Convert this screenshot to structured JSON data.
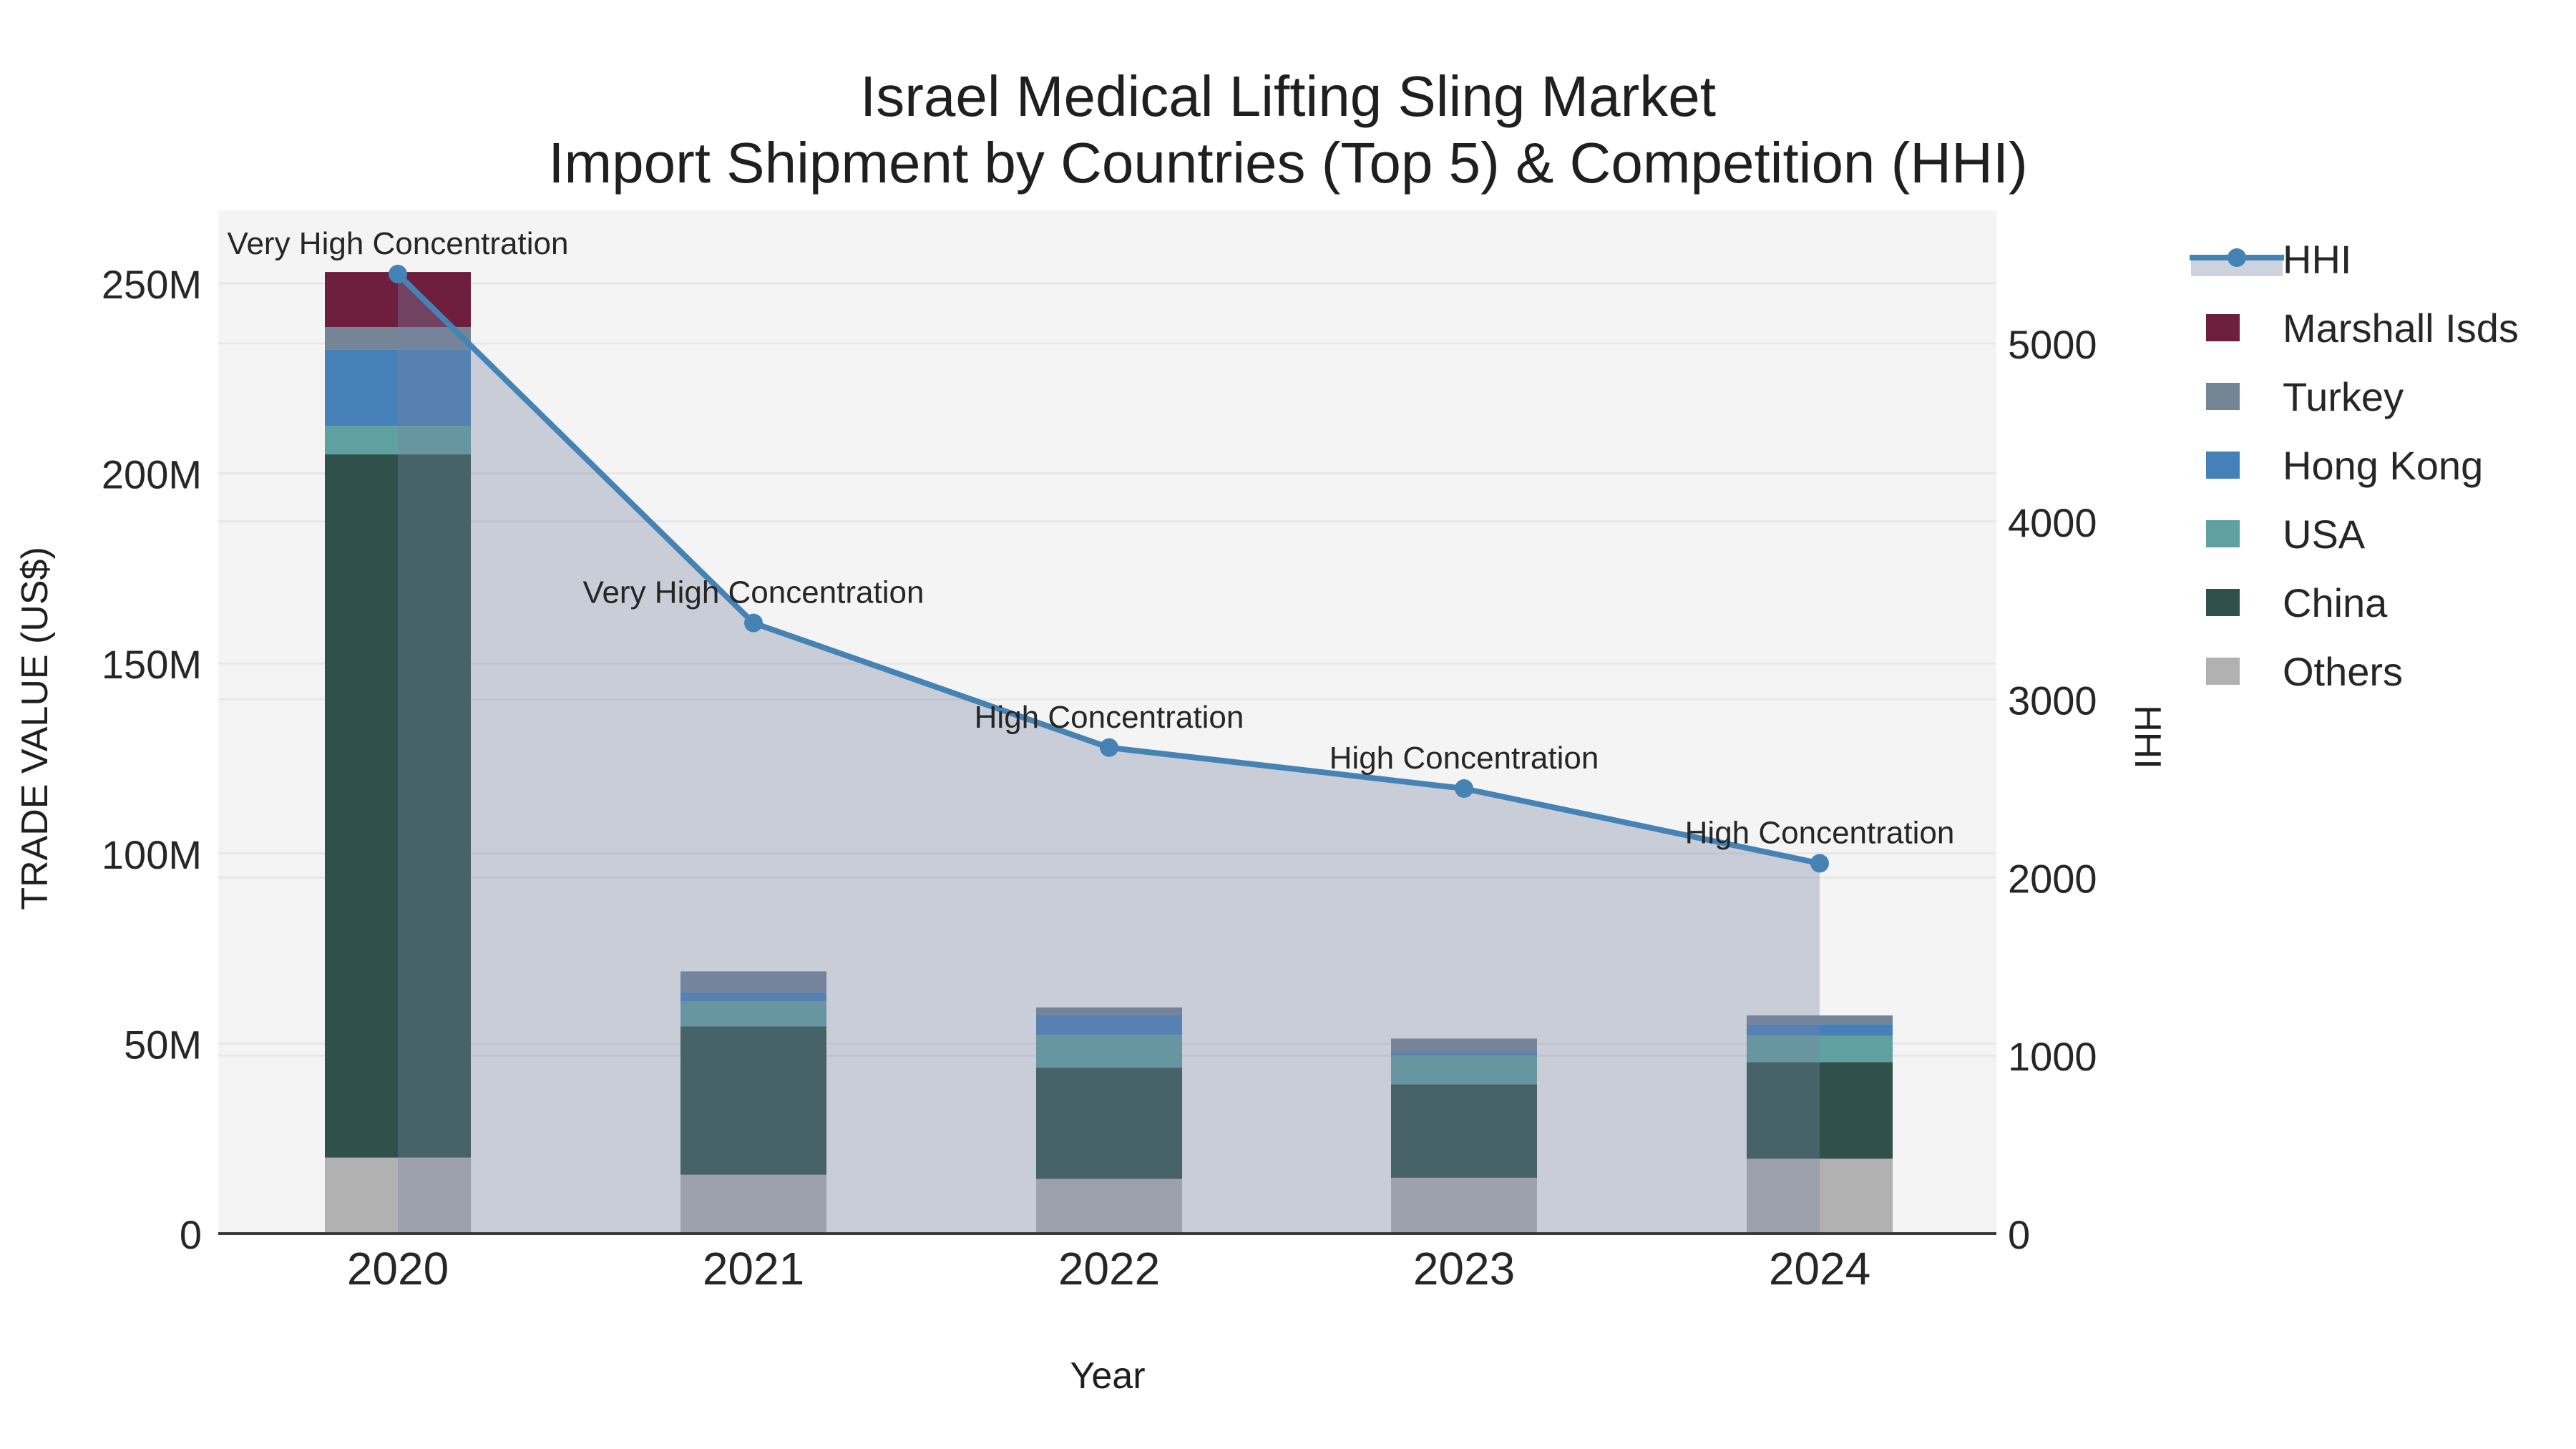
{
  "chart": {
    "title_line1": "Israel Medical Lifting Sling Market",
    "title_line2": "Import Shipment by Countries (Top 5) & Competition (HHI)",
    "x_axis_title": "Year",
    "y_left_title": "TRADE VALUE (US$)",
    "y_right_title": "HHI"
  },
  "chart_data": {
    "type": "combo: stacked-bar (left axis) + line-with-area (right axis)",
    "categories": [
      "2020",
      "2021",
      "2022",
      "2023",
      "2024"
    ],
    "bar_value_unit": "US$ millions",
    "stack_order_bottom_to_top": [
      "Others",
      "China",
      "USA",
      "Hong Kong",
      "Turkey",
      "Marshall Isds"
    ],
    "series": [
      {
        "name": "Marshall Isds",
        "color": "#6e1f3e",
        "values": [
          14.5,
          0,
          0,
          0,
          0
        ]
      },
      {
        "name": "Turkey",
        "color": "#748595",
        "values": [
          6.0,
          5.5,
          2.0,
          3.6,
          2.3
        ]
      },
      {
        "name": "Hong Kong",
        "color": "#4580b8",
        "values": [
          20.0,
          2.4,
          5.2,
          0.8,
          3.1
        ]
      },
      {
        "name": "USA",
        "color": "#5fa0a0",
        "values": [
          7.5,
          6.6,
          8.6,
          7.6,
          6.9
        ]
      },
      {
        "name": "China",
        "color": "#2f504b",
        "values": [
          185.0,
          39.0,
          29.3,
          24.6,
          25.4
        ]
      },
      {
        "name": "Others",
        "color": "#b1b1b1",
        "values": [
          20.0,
          15.5,
          14.4,
          14.7,
          19.7
        ]
      }
    ],
    "line_series": {
      "name": "HHI",
      "axis": "right",
      "color": "#4583b5",
      "area_color": "rgba(119,131,163,0.35)",
      "values": [
        5390,
        3430,
        2730,
        2500,
        2080
      ]
    },
    "annotations": [
      {
        "category": "2020",
        "text": "Very High Concentration"
      },
      {
        "category": "2021",
        "text": "Very High Concentration"
      },
      {
        "category": "2022",
        "text": "High Concentration"
      },
      {
        "category": "2023",
        "text": "High Concentration"
      },
      {
        "category": "2024",
        "text": "High Concentration"
      }
    ],
    "left_axis": {
      "label": "TRADE VALUE (US$)",
      "tick_labels": [
        "0",
        "50M",
        "100M",
        "150M",
        "200M",
        "250M"
      ],
      "tick_values": [
        0,
        50,
        100,
        150,
        200,
        250
      ],
      "range": [
        0,
        269
      ]
    },
    "right_axis": {
      "label": "HHI",
      "tick_labels": [
        "0",
        "1000",
        "2000",
        "3000",
        "4000",
        "5000"
      ],
      "tick_values": [
        0,
        1000,
        2000,
        3000,
        4000,
        5000
      ],
      "range": [
        0,
        5745
      ]
    },
    "x_axis": {
      "label": "Year"
    },
    "grid": true,
    "legend_position": "right-outside",
    "legend": [
      {
        "label": "HHI",
        "type": "line-marker",
        "color": "#4583b5",
        "band_color": "#ccd3dc"
      },
      {
        "label": "Marshall Isds",
        "type": "patch",
        "color": "#6e1f3e"
      },
      {
        "label": "Turkey",
        "type": "patch",
        "color": "#748595"
      },
      {
        "label": "Hong Kong",
        "type": "patch",
        "color": "#4580b8"
      },
      {
        "label": "USA",
        "type": "patch",
        "color": "#5fa0a0"
      },
      {
        "label": "China",
        "type": "patch",
        "color": "#2f504b"
      },
      {
        "label": "Others",
        "type": "patch",
        "color": "#b1b1b1"
      }
    ],
    "colors": {
      "plot_background": "#f4f4f4",
      "figure_background": "#ffffff",
      "gridline": "#e7e7e7",
      "axis_line": "#3a3a3a",
      "annotation_text": "#1a1a1a",
      "tick_text": "#262626"
    }
  }
}
